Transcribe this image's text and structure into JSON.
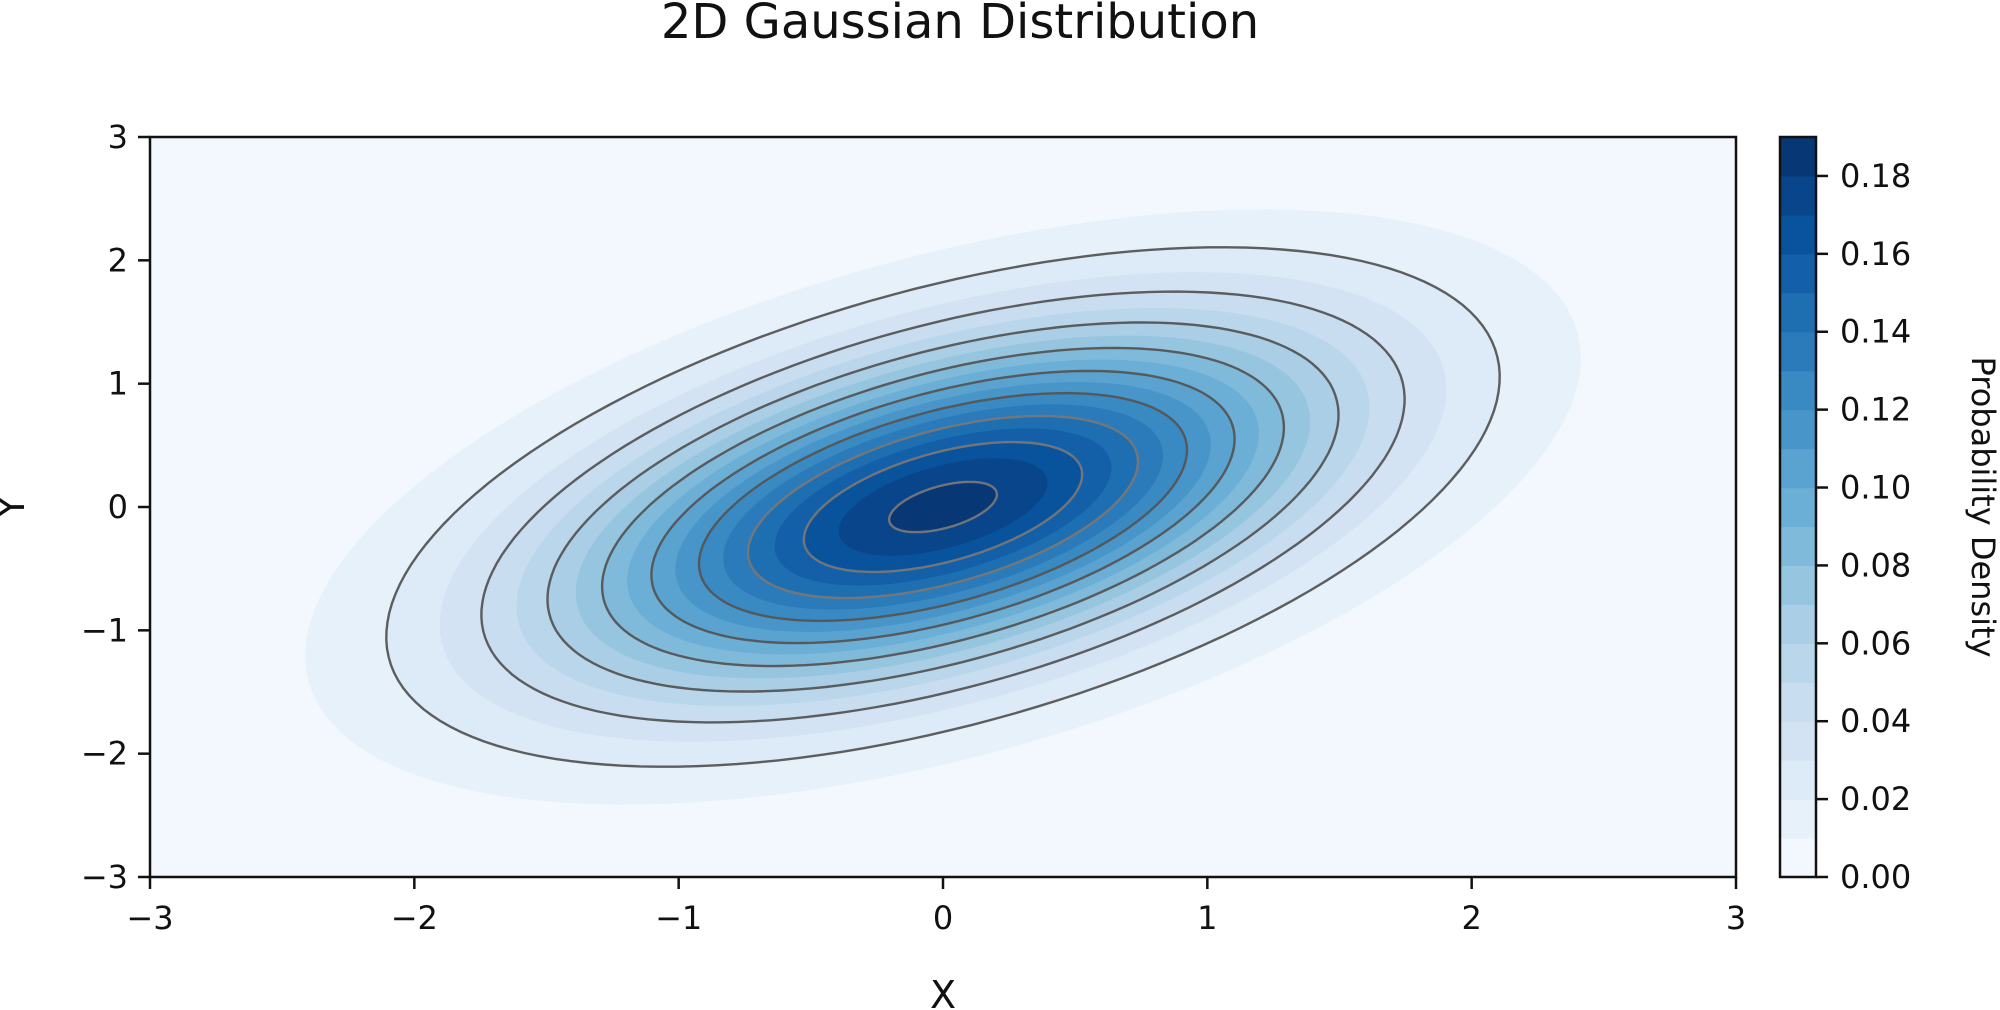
{
  "chart_data": {
    "type": "heatmap",
    "subtype": "filled-contour",
    "title": "2D Gaussian Distribution",
    "xlabel": "X",
    "ylabel": "Y",
    "xlim": [
      -3,
      3
    ],
    "ylim": [
      -3,
      3
    ],
    "xticks": [
      -3,
      -2,
      -1,
      0,
      1,
      2,
      3
    ],
    "yticks": [
      -3,
      -2,
      -1,
      0,
      1,
      2,
      3
    ],
    "xtick_labels": [
      "−3",
      "−2",
      "−1",
      "0",
      "1",
      "2",
      "3"
    ],
    "ytick_labels": [
      "−3",
      "−2",
      "−1",
      "0",
      "1",
      "2",
      "3"
    ],
    "distribution": {
      "mean": [
        0,
        0
      ],
      "sigma_x": 1,
      "sigma_y": 1,
      "correlation": 0.5
    },
    "grid": false,
    "colormap": "Blues",
    "colorbar": {
      "label": "Probability Density",
      "range": [
        0,
        0.19
      ],
      "ticks": [
        0.0,
        0.02,
        0.04,
        0.06,
        0.08,
        0.1,
        0.12,
        0.14,
        0.16,
        0.18
      ],
      "tick_labels": [
        "0.00",
        "0.02",
        "0.04",
        "0.06",
        "0.08",
        "0.10",
        "0.12",
        "0.14",
        "0.16",
        "0.18"
      ]
    },
    "filled_levels": [
      0,
      0.01,
      0.02,
      0.03,
      0.04,
      0.05,
      0.06,
      0.07,
      0.08,
      0.09,
      0.1,
      0.11,
      0.12,
      0.13,
      0.14,
      0.15,
      0.16,
      0.17,
      0.18,
      0.19
    ],
    "contour_lines": [
      0.02,
      0.04,
      0.06,
      0.08,
      0.1,
      0.12,
      0.14,
      0.16,
      0.18
    ],
    "contour_line_color": "#555555",
    "colors": {
      "low": "#f7fbff",
      "high": "#08306b"
    }
  }
}
